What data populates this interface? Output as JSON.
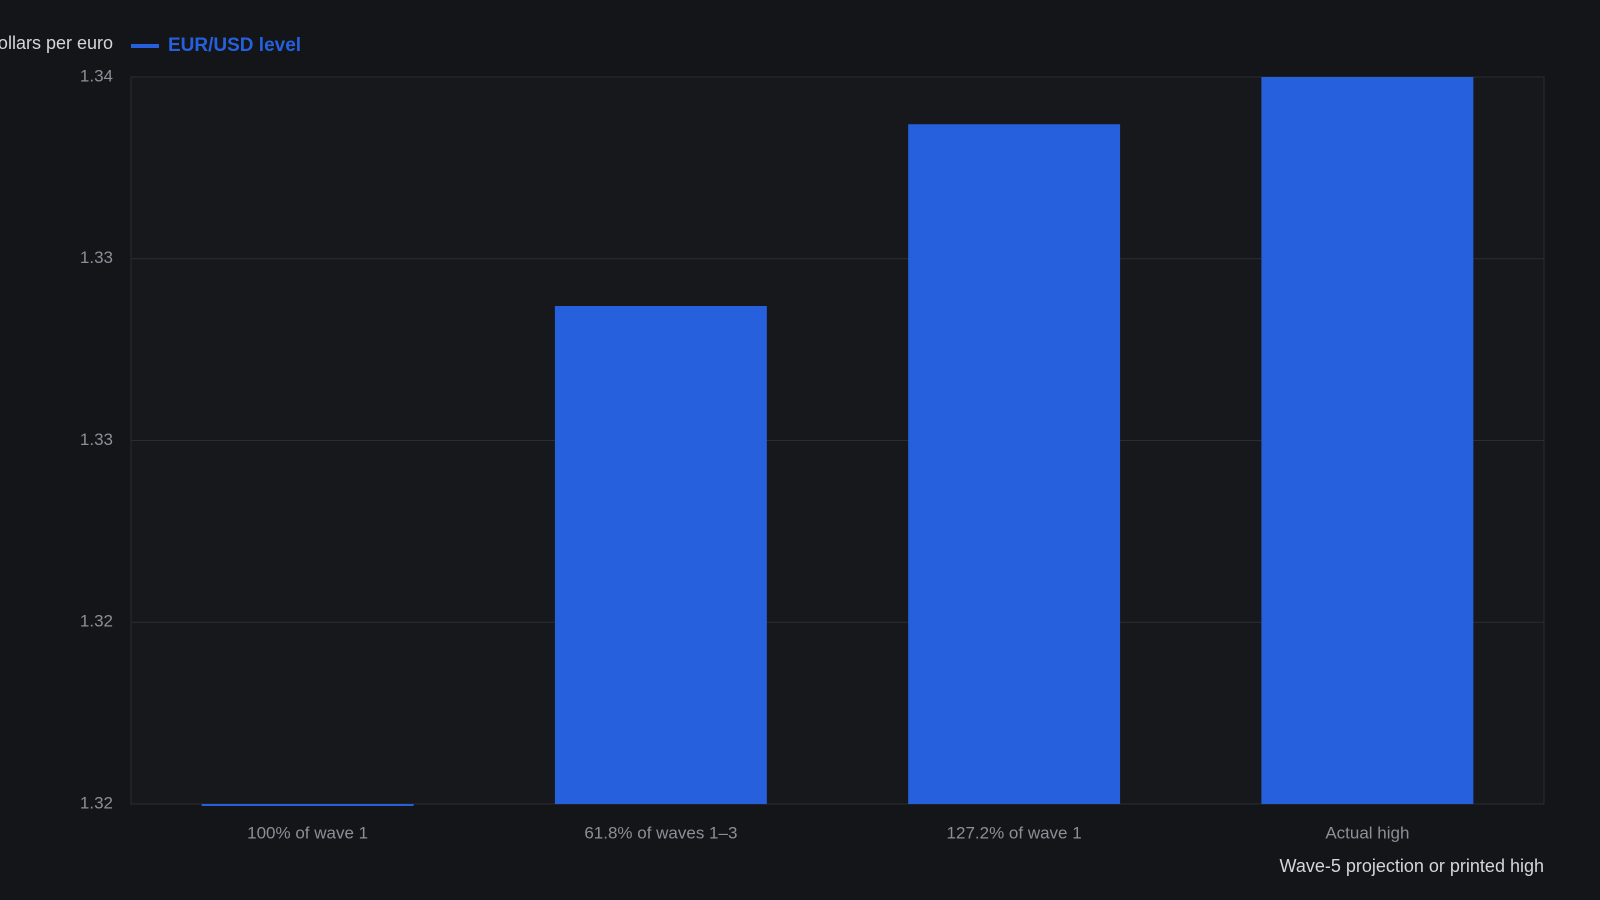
{
  "chart_data": {
    "type": "bar",
    "y_axis_label": "Dollars per euro",
    "x_axis_label": "Wave-5 projection or printed high",
    "categories": [
      "100% of wave 1",
      "61.8% of waves 1–3",
      "127.2% of wave 1",
      "Actual high"
    ],
    "series": [
      {
        "name": "EUR/USD level",
        "color": "#2660dd",
        "values": [
          1.32,
          1.3337,
          1.3387,
          1.34
        ]
      }
    ],
    "ylim": [
      1.32,
      1.34
    ],
    "yticks": [
      1.32,
      {
        "value": 1.325,
        "label": "1.32"
      },
      1.33,
      {
        "value": 1.335,
        "label": "1.33"
      },
      1.34
    ],
    "grid": true
  }
}
